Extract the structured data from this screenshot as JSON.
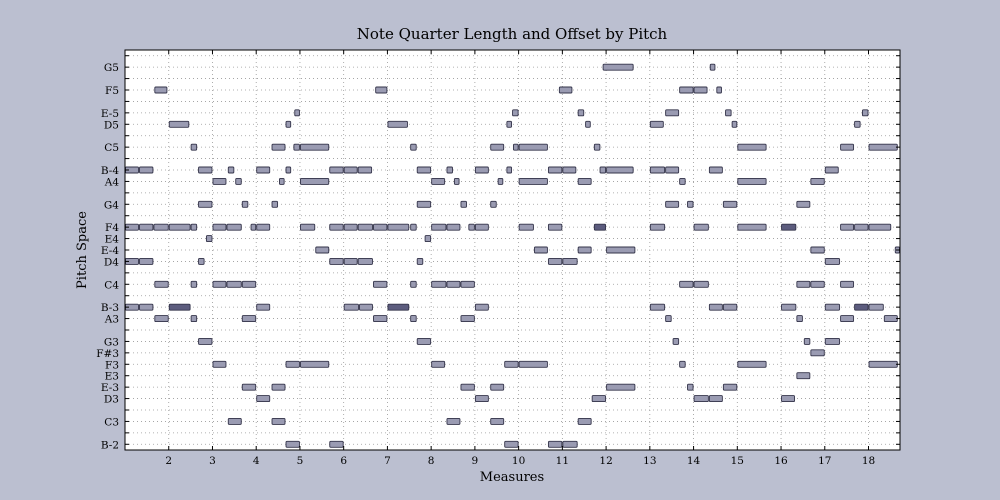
{
  "chart_data": {
    "type": "pianoroll",
    "title": "Note Quarter Length and Offset by Pitch",
    "xlabel": "Measures",
    "ylabel": "Pitch Space",
    "xlim": [
      1.0,
      18.72
    ],
    "ylim": [
      45.5,
      80.5
    ],
    "x_ticks": [
      2,
      3,
      4,
      5,
      6,
      7,
      8,
      9,
      10,
      11,
      12,
      13,
      14,
      15,
      16,
      17,
      18
    ],
    "y_ticks": [
      {
        "label": "G5",
        "midi": 79
      },
      {
        "label": "F5",
        "midi": 77
      },
      {
        "label": "E-5",
        "midi": 75
      },
      {
        "label": "D5",
        "midi": 74
      },
      {
        "label": "C5",
        "midi": 72
      },
      {
        "label": "B-4",
        "midi": 70
      },
      {
        "label": "A4",
        "midi": 69
      },
      {
        "label": "G4",
        "midi": 67
      },
      {
        "label": "F4",
        "midi": 65
      },
      {
        "label": "E4",
        "midi": 64
      },
      {
        "label": "E-4",
        "midi": 63
      },
      {
        "label": "D4",
        "midi": 62
      },
      {
        "label": "C4",
        "midi": 60
      },
      {
        "label": "B-3",
        "midi": 58
      },
      {
        "label": "A3",
        "midi": 57
      },
      {
        "label": "G3",
        "midi": 55
      },
      {
        "label": "F#3",
        "midi": 54
      },
      {
        "label": "F3",
        "midi": 53
      },
      {
        "label": "E3",
        "midi": 52
      },
      {
        "label": "E-3",
        "midi": 51
      },
      {
        "label": "D3",
        "midi": 50
      },
      {
        "label": "C3",
        "midi": 48
      },
      {
        "label": "B-2",
        "midi": 46
      }
    ],
    "grid": true,
    "colors": {
      "note": "#9a9bb2",
      "note_dark": "#5c5c7e",
      "edge": "#34344a",
      "background": "#bbbfd0",
      "plot": "#ffffff"
    },
    "notes": [
      {
        "p": 79,
        "s": 11.92,
        "e": 12.63
      },
      {
        "p": 79,
        "s": 14.37,
        "e": 14.5
      },
      {
        "p": 77,
        "s": 1.67,
        "e": 1.97
      },
      {
        "p": 77,
        "s": 6.72,
        "e": 7.0
      },
      {
        "p": 77,
        "s": 10.92,
        "e": 11.23
      },
      {
        "p": 77,
        "s": 13.67,
        "e": 14.0
      },
      {
        "p": 77,
        "s": 14.0,
        "e": 14.32
      },
      {
        "p": 77,
        "s": 14.52,
        "e": 14.65
      },
      {
        "p": 75,
        "s": 4.87,
        "e": 5.0
      },
      {
        "p": 75,
        "s": 9.85,
        "e": 10.0
      },
      {
        "p": 75,
        "s": 11.35,
        "e": 11.5
      },
      {
        "p": 75,
        "s": 13.35,
        "e": 13.67
      },
      {
        "p": 75,
        "s": 14.72,
        "e": 14.87
      },
      {
        "p": 75,
        "s": 17.85,
        "e": 18.0
      },
      {
        "p": 74,
        "s": 2.0,
        "e": 2.47
      },
      {
        "p": 74,
        "s": 4.67,
        "e": 4.8
      },
      {
        "p": 74,
        "s": 7.0,
        "e": 7.47
      },
      {
        "p": 74,
        "s": 9.72,
        "e": 9.85
      },
      {
        "p": 74,
        "s": 11.52,
        "e": 11.65
      },
      {
        "p": 74,
        "s": 13.0,
        "e": 13.32
      },
      {
        "p": 74,
        "s": 14.87,
        "e": 15.0
      },
      {
        "p": 74,
        "s": 17.67,
        "e": 17.82
      },
      {
        "p": 72,
        "s": 2.5,
        "e": 2.65
      },
      {
        "p": 72,
        "s": 4.35,
        "e": 4.67
      },
      {
        "p": 72,
        "s": 4.85,
        "e": 5.0
      },
      {
        "p": 72,
        "s": 5.0,
        "e": 5.67
      },
      {
        "p": 72,
        "s": 7.52,
        "e": 7.67
      },
      {
        "p": 72,
        "s": 9.35,
        "e": 9.67
      },
      {
        "p": 72,
        "s": 9.87,
        "e": 10.0
      },
      {
        "p": 72,
        "s": 10.0,
        "e": 10.67
      },
      {
        "p": 72,
        "s": 11.72,
        "e": 11.87
      },
      {
        "p": 72,
        "s": 15.0,
        "e": 15.67
      },
      {
        "p": 72,
        "s": 17.35,
        "e": 17.67
      },
      {
        "p": 72,
        "s": 18.0,
        "e": 18.67
      },
      {
        "p": 70,
        "s": 1.0,
        "e": 1.32
      },
      {
        "p": 70,
        "s": 1.32,
        "e": 1.65
      },
      {
        "p": 70,
        "s": 2.67,
        "e": 3.0
      },
      {
        "p": 70,
        "s": 3.35,
        "e": 3.5
      },
      {
        "p": 70,
        "s": 4.0,
        "e": 4.32
      },
      {
        "p": 70,
        "s": 4.67,
        "e": 4.8
      },
      {
        "p": 70,
        "s": 5.67,
        "e": 6.0
      },
      {
        "p": 70,
        "s": 6.0,
        "e": 6.32
      },
      {
        "p": 70,
        "s": 6.32,
        "e": 6.65
      },
      {
        "p": 70,
        "s": 7.67,
        "e": 8.0
      },
      {
        "p": 70,
        "s": 8.35,
        "e": 8.5
      },
      {
        "p": 70,
        "s": 9.0,
        "e": 9.32
      },
      {
        "p": 70,
        "s": 9.72,
        "e": 9.85
      },
      {
        "p": 70,
        "s": 10.67,
        "e": 11.0
      },
      {
        "p": 70,
        "s": 11.0,
        "e": 11.32
      },
      {
        "p": 70,
        "s": 11.85,
        "e": 12.0
      },
      {
        "p": 70,
        "s": 12.0,
        "e": 12.63
      },
      {
        "p": 70,
        "s": 13.0,
        "e": 13.35
      },
      {
        "p": 70,
        "s": 13.35,
        "e": 13.67
      },
      {
        "p": 70,
        "s": 14.35,
        "e": 14.67
      },
      {
        "p": 70,
        "s": 17.0,
        "e": 17.32
      },
      {
        "p": 69,
        "s": 3.0,
        "e": 3.32
      },
      {
        "p": 69,
        "s": 3.52,
        "e": 3.67
      },
      {
        "p": 69,
        "s": 4.52,
        "e": 4.65
      },
      {
        "p": 69,
        "s": 5.0,
        "e": 5.67
      },
      {
        "p": 69,
        "s": 8.0,
        "e": 8.32
      },
      {
        "p": 69,
        "s": 8.52,
        "e": 8.65
      },
      {
        "p": 69,
        "s": 9.52,
        "e": 9.65
      },
      {
        "p": 69,
        "s": 10.0,
        "e": 10.67
      },
      {
        "p": 69,
        "s": 11.35,
        "e": 11.67
      },
      {
        "p": 69,
        "s": 13.67,
        "e": 13.82
      },
      {
        "p": 69,
        "s": 15.0,
        "e": 15.67
      },
      {
        "p": 69,
        "s": 16.67,
        "e": 17.0
      },
      {
        "p": 67,
        "s": 2.67,
        "e": 3.0
      },
      {
        "p": 67,
        "s": 3.67,
        "e": 3.82
      },
      {
        "p": 67,
        "s": 4.35,
        "e": 4.5
      },
      {
        "p": 67,
        "s": 7.67,
        "e": 8.0
      },
      {
        "p": 67,
        "s": 8.67,
        "e": 8.82
      },
      {
        "p": 67,
        "s": 9.35,
        "e": 9.5
      },
      {
        "p": 67,
        "s": 13.35,
        "e": 13.67
      },
      {
        "p": 67,
        "s": 13.85,
        "e": 14.0
      },
      {
        "p": 67,
        "s": 14.67,
        "e": 15.0
      },
      {
        "p": 67,
        "s": 16.35,
        "e": 16.67
      },
      {
        "p": 65,
        "s": 1.0,
        "e": 1.32
      },
      {
        "p": 65,
        "s": 1.32,
        "e": 1.65
      },
      {
        "p": 65,
        "s": 1.65,
        "e": 2.0
      },
      {
        "p": 65,
        "s": 2.0,
        "e": 2.5
      },
      {
        "p": 65,
        "s": 2.5,
        "e": 2.65
      },
      {
        "p": 65,
        "s": 3.0,
        "e": 3.32
      },
      {
        "p": 65,
        "s": 3.32,
        "e": 3.67
      },
      {
        "p": 65,
        "s": 3.87,
        "e": 4.0
      },
      {
        "p": 65,
        "s": 4.0,
        "e": 4.32
      },
      {
        "p": 65,
        "s": 5.0,
        "e": 5.35
      },
      {
        "p": 65,
        "s": 5.67,
        "e": 6.0
      },
      {
        "p": 65,
        "s": 6.0,
        "e": 6.32
      },
      {
        "p": 65,
        "s": 6.32,
        "e": 6.67
      },
      {
        "p": 65,
        "s": 6.67,
        "e": 7.0
      },
      {
        "p": 65,
        "s": 7.0,
        "e": 7.5
      },
      {
        "p": 65,
        "s": 7.52,
        "e": 7.67
      },
      {
        "p": 65,
        "s": 8.0,
        "e": 8.35
      },
      {
        "p": 65,
        "s": 8.35,
        "e": 8.67
      },
      {
        "p": 65,
        "s": 8.85,
        "e": 9.0
      },
      {
        "p": 65,
        "s": 9.0,
        "e": 9.32
      },
      {
        "p": 65,
        "s": 10.0,
        "e": 10.35
      },
      {
        "p": 65,
        "s": 10.67,
        "e": 11.0
      },
      {
        "p": 65,
        "s": 11.72,
        "e": 12.0,
        "dark": true
      },
      {
        "p": 65,
        "s": 13.0,
        "e": 13.35
      },
      {
        "p": 65,
        "s": 14.0,
        "e": 14.35
      },
      {
        "p": 65,
        "s": 15.0,
        "e": 15.67
      },
      {
        "p": 65,
        "s": 16.0,
        "e": 16.35,
        "dark": true
      },
      {
        "p": 65,
        "s": 17.35,
        "e": 17.67
      },
      {
        "p": 65,
        "s": 17.67,
        "e": 18.0
      },
      {
        "p": 65,
        "s": 18.0,
        "e": 18.52
      },
      {
        "p": 64,
        "s": 2.85,
        "e": 3.0
      },
      {
        "p": 64,
        "s": 7.85,
        "e": 8.0
      },
      {
        "p": 63,
        "s": 5.35,
        "e": 5.67
      },
      {
        "p": 63,
        "s": 10.35,
        "e": 10.67
      },
      {
        "p": 63,
        "s": 11.35,
        "e": 11.67
      },
      {
        "p": 63,
        "s": 12.0,
        "e": 12.67
      },
      {
        "p": 63,
        "s": 16.67,
        "e": 17.0
      },
      {
        "p": 63,
        "s": 18.6,
        "e": 18.72
      },
      {
        "p": 62,
        "s": 1.0,
        "e": 1.32
      },
      {
        "p": 62,
        "s": 1.32,
        "e": 1.65
      },
      {
        "p": 62,
        "s": 2.67,
        "e": 2.82
      },
      {
        "p": 62,
        "s": 5.67,
        "e": 6.0
      },
      {
        "p": 62,
        "s": 6.0,
        "e": 6.32
      },
      {
        "p": 62,
        "s": 6.32,
        "e": 6.67
      },
      {
        "p": 62,
        "s": 7.67,
        "e": 7.82
      },
      {
        "p": 62,
        "s": 10.67,
        "e": 11.0
      },
      {
        "p": 62,
        "s": 11.0,
        "e": 11.35
      },
      {
        "p": 62,
        "s": 17.0,
        "e": 17.35
      },
      {
        "p": 60,
        "s": 1.67,
        "e": 2.0
      },
      {
        "p": 60,
        "s": 2.5,
        "e": 2.65
      },
      {
        "p": 60,
        "s": 3.0,
        "e": 3.32
      },
      {
        "p": 60,
        "s": 3.32,
        "e": 3.67
      },
      {
        "p": 60,
        "s": 3.67,
        "e": 4.0
      },
      {
        "p": 60,
        "s": 6.67,
        "e": 7.0
      },
      {
        "p": 60,
        "s": 7.52,
        "e": 7.67
      },
      {
        "p": 60,
        "s": 8.0,
        "e": 8.35
      },
      {
        "p": 60,
        "s": 8.35,
        "e": 8.67
      },
      {
        "p": 60,
        "s": 8.67,
        "e": 9.0
      },
      {
        "p": 60,
        "s": 13.67,
        "e": 14.0
      },
      {
        "p": 60,
        "s": 14.0,
        "e": 14.35
      },
      {
        "p": 60,
        "s": 16.35,
        "e": 16.67
      },
      {
        "p": 60,
        "s": 16.67,
        "e": 17.0
      },
      {
        "p": 60,
        "s": 17.35,
        "e": 17.67
      },
      {
        "p": 58,
        "s": 1.0,
        "e": 1.32
      },
      {
        "p": 58,
        "s": 1.32,
        "e": 1.65
      },
      {
        "p": 58,
        "s": 2.0,
        "e": 2.5,
        "dark": true
      },
      {
        "p": 58,
        "s": 4.0,
        "e": 4.32
      },
      {
        "p": 58,
        "s": 6.0,
        "e": 6.35
      },
      {
        "p": 58,
        "s": 6.35,
        "e": 6.67
      },
      {
        "p": 58,
        "s": 7.0,
        "e": 7.5,
        "dark": true
      },
      {
        "p": 58,
        "s": 9.0,
        "e": 9.32
      },
      {
        "p": 58,
        "s": 13.0,
        "e": 13.35
      },
      {
        "p": 58,
        "s": 14.35,
        "e": 14.67
      },
      {
        "p": 58,
        "s": 14.67,
        "e": 15.0
      },
      {
        "p": 58,
        "s": 16.0,
        "e": 16.35
      },
      {
        "p": 58,
        "s": 17.0,
        "e": 17.35
      },
      {
        "p": 58,
        "s": 17.67,
        "e": 18.0,
        "dark": true
      },
      {
        "p": 58,
        "s": 18.0,
        "e": 18.35
      },
      {
        "p": 57,
        "s": 1.67,
        "e": 2.0
      },
      {
        "p": 57,
        "s": 2.5,
        "e": 2.65
      },
      {
        "p": 57,
        "s": 3.67,
        "e": 4.0
      },
      {
        "p": 57,
        "s": 6.67,
        "e": 7.0
      },
      {
        "p": 57,
        "s": 7.52,
        "e": 7.67
      },
      {
        "p": 57,
        "s": 8.67,
        "e": 9.0
      },
      {
        "p": 57,
        "s": 13.35,
        "e": 13.5
      },
      {
        "p": 57,
        "s": 16.35,
        "e": 16.5
      },
      {
        "p": 57,
        "s": 17.35,
        "e": 17.67
      },
      {
        "p": 57,
        "s": 18.35,
        "e": 18.67
      },
      {
        "p": 55,
        "s": 2.67,
        "e": 3.0
      },
      {
        "p": 55,
        "s": 7.67,
        "e": 8.0
      },
      {
        "p": 55,
        "s": 13.52,
        "e": 13.67
      },
      {
        "p": 55,
        "s": 16.52,
        "e": 16.67
      },
      {
        "p": 55,
        "s": 17.0,
        "e": 17.35
      },
      {
        "p": 54,
        "s": 16.67,
        "e": 17.0
      },
      {
        "p": 53,
        "s": 3.0,
        "e": 3.32
      },
      {
        "p": 53,
        "s": 4.67,
        "e": 5.0
      },
      {
        "p": 53,
        "s": 5.0,
        "e": 5.67
      },
      {
        "p": 53,
        "s": 8.0,
        "e": 8.32
      },
      {
        "p": 53,
        "s": 9.67,
        "e": 10.0
      },
      {
        "p": 53,
        "s": 10.0,
        "e": 10.67
      },
      {
        "p": 53,
        "s": 13.67,
        "e": 13.82
      },
      {
        "p": 53,
        "s": 15.0,
        "e": 15.67
      },
      {
        "p": 53,
        "s": 18.0,
        "e": 18.67
      },
      {
        "p": 52,
        "s": 16.35,
        "e": 16.67
      },
      {
        "p": 51,
        "s": 3.67,
        "e": 4.0
      },
      {
        "p": 51,
        "s": 4.35,
        "e": 4.67
      },
      {
        "p": 51,
        "s": 8.67,
        "e": 9.0
      },
      {
        "p": 51,
        "s": 9.35,
        "e": 9.67
      },
      {
        "p": 51,
        "s": 12.0,
        "e": 12.67
      },
      {
        "p": 51,
        "s": 13.85,
        "e": 14.0
      },
      {
        "p": 51,
        "s": 14.67,
        "e": 15.0
      },
      {
        "p": 50,
        "s": 4.0,
        "e": 4.32
      },
      {
        "p": 50,
        "s": 9.0,
        "e": 9.32
      },
      {
        "p": 50,
        "s": 11.67,
        "e": 12.0
      },
      {
        "p": 50,
        "s": 14.0,
        "e": 14.35
      },
      {
        "p": 50,
        "s": 14.35,
        "e": 14.67
      },
      {
        "p": 50,
        "s": 16.0,
        "e": 16.32
      },
      {
        "p": 48,
        "s": 3.35,
        "e": 3.67
      },
      {
        "p": 48,
        "s": 4.35,
        "e": 4.67
      },
      {
        "p": 48,
        "s": 8.35,
        "e": 8.67
      },
      {
        "p": 48,
        "s": 9.35,
        "e": 9.67
      },
      {
        "p": 48,
        "s": 11.35,
        "e": 11.67
      },
      {
        "p": 46,
        "s": 4.67,
        "e": 5.0
      },
      {
        "p": 46,
        "s": 5.67,
        "e": 6.0
      },
      {
        "p": 46,
        "s": 9.67,
        "e": 10.0
      },
      {
        "p": 46,
        "s": 10.67,
        "e": 11.0
      },
      {
        "p": 46,
        "s": 11.0,
        "e": 11.35
      }
    ]
  }
}
